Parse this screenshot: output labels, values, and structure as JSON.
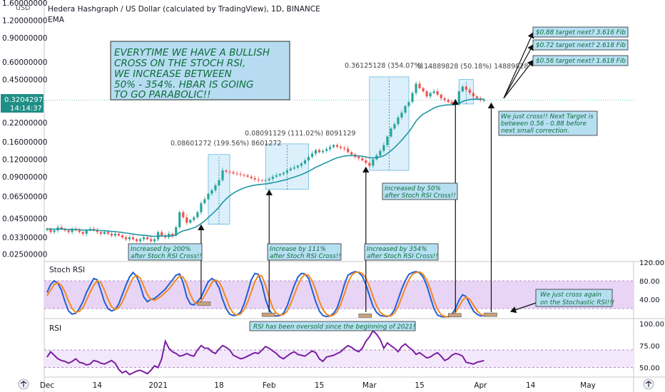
{
  "header": {
    "title": "Hedera Hashgraph / US Dollar (calculated by TradingView), 1D, BINANCE",
    "indicator": "EMA",
    "currency": "USD"
  },
  "price_badge": {
    "value": "0.32042971",
    "time": "14:14:37"
  },
  "corner_icons": {
    "left": "tradingview-logo-icon",
    "right": "tradingview-logo-icon"
  },
  "colors": {
    "up": "#26a69a",
    "down": "#ef5350",
    "ema": "#2196a3",
    "stoch_k": "#1f5fd6",
    "stoch_d": "#f2891f",
    "rsi": "#7b1fa2",
    "box_fill": "#bfe3f7",
    "note_fill": "#b7dff2",
    "note_text": "#0d6e3a",
    "osc_band": "#e8d4f5"
  },
  "chart_data": [
    {
      "type": "candlestick",
      "name": "main",
      "yscale": "log",
      "ylim": [
        0.024,
        1.6
      ],
      "x_ticks": [
        {
          "day": 0,
          "label": "Dec"
        },
        {
          "day": 14,
          "label": "14"
        },
        {
          "day": 31,
          "label": "2021"
        },
        {
          "day": 48,
          "label": "18"
        },
        {
          "day": 62,
          "label": "Feb"
        },
        {
          "day": 76,
          "label": "15"
        },
        {
          "day": 90,
          "label": "Mar"
        },
        {
          "day": 104,
          "label": "15"
        },
        {
          "day": 121,
          "label": "Apr"
        },
        {
          "day": 135,
          "label": "14"
        },
        {
          "day": 151,
          "label": "May"
        }
      ],
      "y_ticks": [
        {
          "v": 1.6,
          "label": "1.60000000"
        },
        {
          "v": 1.2,
          "label": "1.20000000"
        },
        {
          "v": 0.9,
          "label": "0.90000000"
        },
        {
          "v": 0.6,
          "label": "0.60000000"
        },
        {
          "v": 0.45,
          "label": "0.45000000"
        },
        {
          "v": 0.22,
          "label": "0.22000000"
        },
        {
          "v": 0.16,
          "label": "0.16000000"
        },
        {
          "v": 0.12,
          "label": "0.12000000"
        },
        {
          "v": 0.09,
          "label": "0.09000000"
        },
        {
          "v": 0.065,
          "label": "0.06500000"
        },
        {
          "v": 0.045,
          "label": "0.04500000"
        },
        {
          "v": 0.033,
          "label": "0.03300000"
        },
        {
          "v": 0.025,
          "label": "0.02500000"
        }
      ],
      "closes": [
        0.038,
        0.036,
        0.037,
        0.039,
        0.038,
        0.037,
        0.036,
        0.038,
        0.037,
        0.036,
        0.035,
        0.037,
        0.038,
        0.037,
        0.036,
        0.035,
        0.036,
        0.035,
        0.034,
        0.035,
        0.034,
        0.033,
        0.032,
        0.033,
        0.032,
        0.031,
        0.032,
        0.033,
        0.032,
        0.031,
        0.032,
        0.036,
        0.034,
        0.033,
        0.035,
        0.034,
        0.039,
        0.05,
        0.046,
        0.042,
        0.044,
        0.046,
        0.05,
        0.058,
        0.062,
        0.068,
        0.072,
        0.078,
        0.085,
        0.1,
        0.098,
        0.097,
        0.095,
        0.094,
        0.093,
        0.092,
        0.09,
        0.088,
        0.086,
        0.085,
        0.084,
        0.085,
        0.087,
        0.09,
        0.092,
        0.094,
        0.096,
        0.1,
        0.103,
        0.105,
        0.108,
        0.112,
        0.118,
        0.125,
        0.132,
        0.14,
        0.135,
        0.138,
        0.142,
        0.147,
        0.152,
        0.148,
        0.145,
        0.143,
        0.135,
        0.13,
        0.125,
        0.122,
        0.118,
        0.113,
        0.108,
        0.12,
        0.128,
        0.138,
        0.152,
        0.175,
        0.2,
        0.215,
        0.24,
        0.26,
        0.29,
        0.31,
        0.36,
        0.42,
        0.39,
        0.37,
        0.34,
        0.36,
        0.37,
        0.35,
        0.33,
        0.32,
        0.31,
        0.3,
        0.3,
        0.37,
        0.4,
        0.38,
        0.36,
        0.34,
        0.33,
        0.32,
        0.32
      ],
      "ema_from_day": 0,
      "boxes": [
        {
          "from_day": 45,
          "to_day": 51,
          "low": 0.041,
          "high": 0.13,
          "label": "0.08601272 (199.56%) 8601272"
        },
        {
          "from_day": 61,
          "to_day": 73,
          "low": 0.073,
          "high": 0.155,
          "label": "0.08091129 (111.02%) 8091129"
        },
        {
          "from_day": 90,
          "to_day": 101,
          "low": 0.1,
          "high": 0.47,
          "label": "0.36125128 (354.07%) ..."
        },
        {
          "from_day": 115,
          "to_day": 119,
          "low": 0.3,
          "high": 0.45,
          "label": "0.14889828 (50.18%) 14889828"
        }
      ],
      "price_line": 0.32042971
    },
    {
      "type": "line",
      "name": "Stoch RSI",
      "ylim": [
        0,
        120
      ],
      "y_ticks": [
        {
          "v": 120,
          "label": "120.00"
        },
        {
          "v": 80,
          "label": "80.00"
        },
        {
          "v": 40,
          "label": "40.00"
        }
      ],
      "band": [
        20,
        80
      ],
      "series": [
        {
          "name": "K",
          "values": [
            55,
            72,
            80,
            75,
            60,
            35,
            15,
            8,
            10,
            20,
            35,
            55,
            70,
            85,
            82,
            60,
            35,
            20,
            15,
            18,
            30,
            50,
            70,
            88,
            98,
            90,
            70,
            45,
            35,
            40,
            42,
            48,
            55,
            62,
            72,
            82,
            92,
            95,
            75,
            45,
            30,
            28,
            35,
            45,
            62,
            78,
            85,
            80,
            65,
            40,
            20,
            8,
            5,
            6,
            12,
            30,
            55,
            82,
            96,
            94,
            72,
            40,
            18,
            6,
            4,
            5,
            10,
            25,
            48,
            70,
            88,
            96,
            95,
            85,
            60,
            35,
            15,
            5,
            3,
            4,
            10,
            22,
            45,
            72,
            92,
            97,
            100,
            98,
            90,
            72,
            48,
            25,
            12,
            5,
            4,
            3,
            6,
            18,
            40,
            62,
            80,
            94,
            98,
            100,
            97,
            88,
            70,
            45,
            20,
            6,
            3,
            2,
            3,
            8,
            20,
            38,
            50,
            46,
            30,
            15,
            8,
            4,
            5
          ]
        },
        {
          "name": "D",
          "values": [
            48,
            60,
            72,
            76,
            70,
            56,
            36,
            20,
            12,
            14,
            22,
            38,
            55,
            70,
            80,
            76,
            60,
            40,
            24,
            18,
            22,
            34,
            52,
            70,
            86,
            92,
            86,
            68,
            50,
            40,
            38,
            42,
            48,
            55,
            62,
            72,
            82,
            90,
            88,
            72,
            50,
            35,
            30,
            36,
            48,
            62,
            76,
            82,
            78,
            62,
            42,
            22,
            10,
            6,
            8,
            18,
            34,
            56,
            78,
            92,
            90,
            70,
            44,
            22,
            10,
            6,
            7,
            14,
            30,
            50,
            70,
            86,
            94,
            92,
            80,
            60,
            36,
            18,
            8,
            4,
            6,
            14,
            30,
            52,
            76,
            92,
            98,
            99,
            96,
            86,
            68,
            46,
            26,
            12,
            6,
            4,
            4,
            10,
            24,
            44,
            64,
            82,
            94,
            98,
            99,
            94,
            82,
            62,
            38,
            18,
            7,
            3,
            2,
            5,
            12,
            24,
            38,
            45,
            40,
            28,
            16,
            8,
            5
          ]
        }
      ]
    },
    {
      "type": "line",
      "name": "RSI",
      "ylim": [
        40,
        105
      ],
      "y_ticks": [
        {
          "v": 100,
          "label": "100.00"
        },
        {
          "v": 75,
          "label": "75.00"
        },
        {
          "v": 50,
          "label": "50.00"
        }
      ],
      "band": [
        50,
        70
      ],
      "series": [
        {
          "name": "RSI",
          "values": [
            62,
            68,
            64,
            60,
            58,
            57,
            55,
            57,
            60,
            56,
            55,
            53,
            54,
            58,
            57,
            55,
            54,
            56,
            58,
            55,
            48,
            44,
            46,
            42,
            44,
            46,
            47,
            45,
            43,
            47,
            52,
            50,
            60,
            80,
            72,
            68,
            66,
            63,
            64,
            66,
            64,
            63,
            70,
            75,
            72,
            72,
            68,
            66,
            71,
            75,
            73,
            70,
            64,
            62,
            60,
            61,
            63,
            65,
            67,
            66,
            70,
            74,
            72,
            69,
            66,
            62,
            60,
            63,
            66,
            68,
            65,
            64,
            63,
            66,
            69,
            67,
            60,
            57,
            62,
            63,
            64,
            66,
            68,
            72,
            75,
            73,
            70,
            68,
            72,
            80,
            85,
            92,
            88,
            82,
            72,
            78,
            75,
            72,
            68,
            74,
            77,
            73,
            70,
            65,
            67,
            64,
            61,
            62,
            65,
            67,
            63,
            58,
            60,
            64,
            66,
            65,
            63,
            56,
            55,
            54,
            56,
            57,
            58
          ]
        }
      ]
    }
  ],
  "annotations": {
    "main_note": [
      "EVERYTIME WE HAVE A BULLISH",
      "CROSS ON THE STOCH RSI,",
      "WE INCREASE BETWEEN",
      "50% - 354%. HBAR IS GOING",
      "TO GO PARABOLIC!!"
    ],
    "inc_200": [
      "Increased by 200%",
      "after Stoch RSI Cross!!"
    ],
    "inc_111": [
      "Increase by 111%",
      "after Stoch RSI Cross!!"
    ],
    "inc_354": [
      "Increased by 354%",
      "after Stoch RSI Cross!!"
    ],
    "inc_50": [
      "Increased by 50%",
      "after Stoch RSI Cross!!"
    ],
    "next_target": [
      "We just cross!! Next Target is",
      "between 0.56 - 0.88 before",
      "next small correction."
    ],
    "stoch_cross": [
      "We just cross again",
      "on the Stochastic RSI!!!"
    ],
    "rsi_oversold": "RSI has been oversold since the beginning of 2021!",
    "targets": [
      "$0.88 target next? 3.616 Fib",
      "$0.72 target next? 2.618 Fib",
      "$0.56 target next? 1.618 Fib"
    ]
  }
}
